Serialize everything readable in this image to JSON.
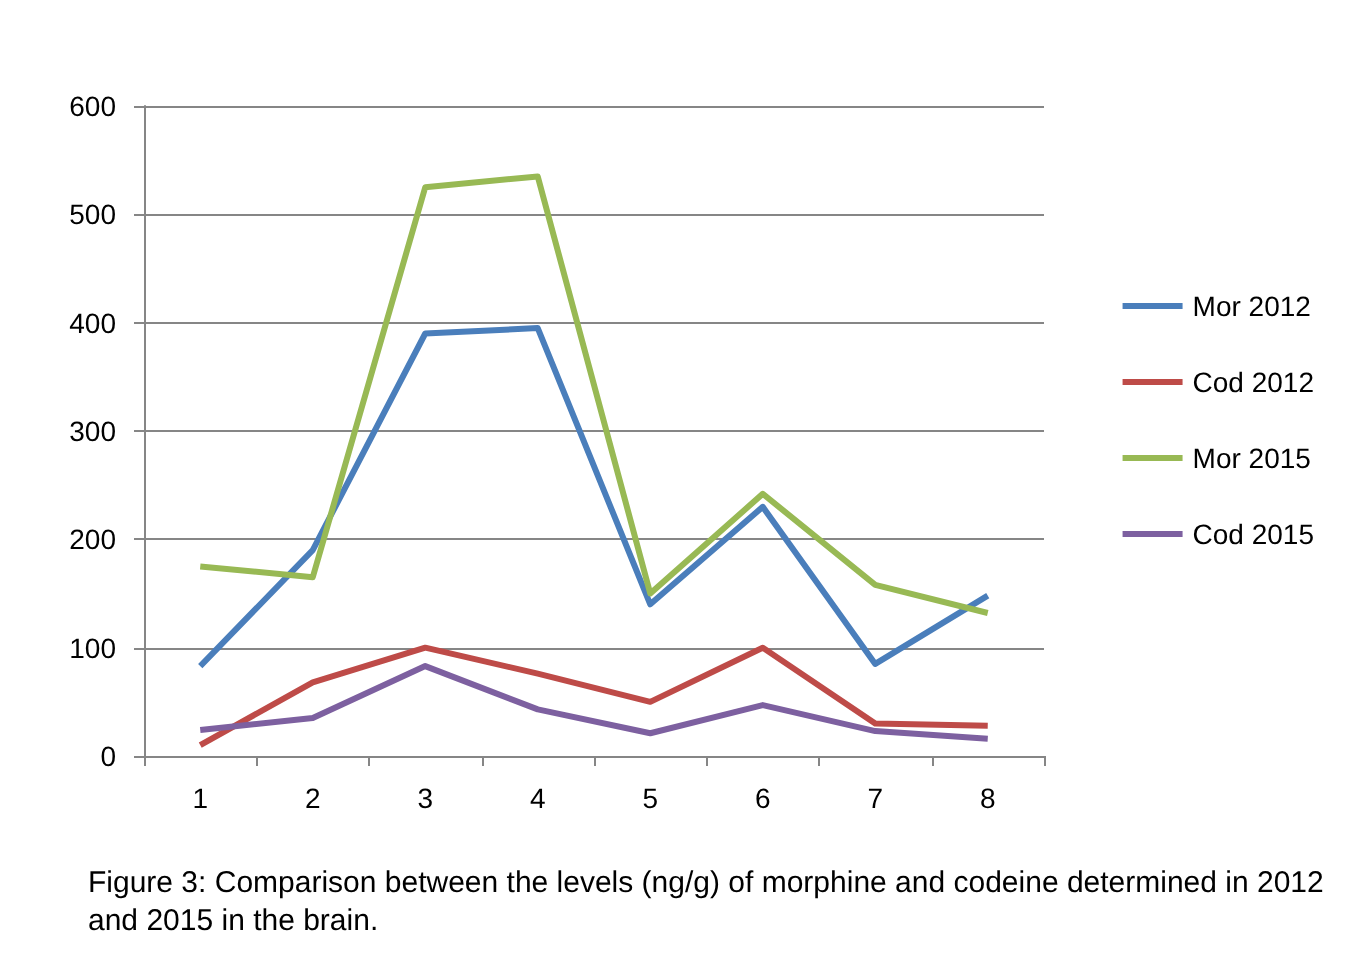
{
  "chart_data": {
    "type": "line",
    "categories": [
      "1",
      "2",
      "3",
      "4",
      "5",
      "6",
      "7",
      "8"
    ],
    "series": [
      {
        "name": "Mor 2012",
        "color": "#4a7ebb",
        "values": [
          83,
          190,
          390,
          395,
          140,
          230,
          85,
          148
        ]
      },
      {
        "name": "Cod 2012",
        "color": "#be4b48",
        "values": [
          10,
          68,
          100,
          76,
          50,
          100,
          30,
          28
        ]
      },
      {
        "name": "Mor 2015",
        "color": "#98b954",
        "values": [
          175,
          165,
          525,
          535,
          150,
          242,
          158,
          132
        ]
      },
      {
        "name": "Cod 2015",
        "color": "#7d60a0",
        "values": [
          24,
          35,
          83,
          43,
          21,
          47,
          23,
          16
        ]
      }
    ],
    "ylim": [
      0,
      600
    ],
    "yticks": [
      0,
      100,
      200,
      300,
      400,
      500,
      600
    ],
    "grid": "y",
    "legend": "right",
    "marker": "none",
    "line_style": "solid",
    "annotations": [
      "Figure 3: Comparison between the levels (ng/g) of morphine and codeine determined in 2012 and 2015 in the brain."
    ]
  }
}
